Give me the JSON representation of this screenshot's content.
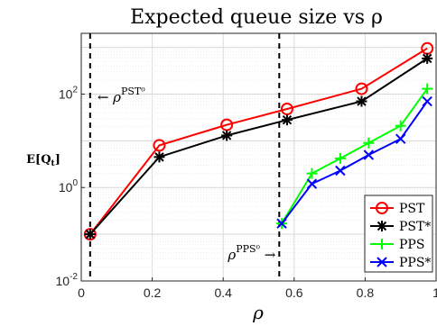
{
  "chart_data": {
    "type": "line",
    "title": "Expected queue size vs ρ",
    "xlabel": "ρ",
    "ylabel": "E[Q_t]",
    "y_log_scale": true,
    "xlim": [
      0,
      1
    ],
    "ylim": [
      0.01,
      2000
    ],
    "grid": true,
    "x_ticks": [
      "0",
      "0.2",
      "0.4",
      "0.6",
      "0.8",
      "1"
    ],
    "y_ticks": [
      {
        "value": 0.01,
        "base": "10",
        "exp": "-2"
      },
      {
        "value": 1,
        "base": "10",
        "exp": "0"
      },
      {
        "value": 100,
        "base": "10",
        "exp": "2"
      }
    ],
    "legend_position": "bottom-right",
    "series": [
      {
        "name": "PST",
        "color": "#ff0000",
        "marker": "circle",
        "x": [
          0.025,
          0.22,
          0.41,
          0.58,
          0.79,
          0.975
        ],
        "y": [
          0.1,
          8,
          22,
          48,
          130,
          950
        ]
      },
      {
        "name": "PST*",
        "color": "#000000",
        "marker": "asterisk",
        "x": [
          0.025,
          0.22,
          0.41,
          0.58,
          0.79,
          0.975
        ],
        "y": [
          0.1,
          4.5,
          13,
          28,
          70,
          580
        ]
      },
      {
        "name": "PPS",
        "color": "#00ff00",
        "marker": "plus",
        "x": [
          0.565,
          0.65,
          0.73,
          0.81,
          0.9,
          0.975
        ],
        "y": [
          0.17,
          2.0,
          4.2,
          9,
          21,
          130
        ]
      },
      {
        "name": "PPS*",
        "color": "#0000ff",
        "marker": "cross",
        "x": [
          0.565,
          0.65,
          0.73,
          0.81,
          0.9,
          0.975
        ],
        "y": [
          0.17,
          1.2,
          2.3,
          5,
          11,
          70
        ]
      }
    ],
    "annotations": [
      {
        "text_prefix": "← ",
        "symbol": "ρ",
        "sup": "PST⁰",
        "x": 0.025,
        "style": "vertical-dashed-line"
      },
      {
        "symbol": "ρ",
        "sup": "PPS⁰",
        "text_suffix": " →",
        "x": 0.558,
        "style": "vertical-dashed-line"
      }
    ]
  }
}
